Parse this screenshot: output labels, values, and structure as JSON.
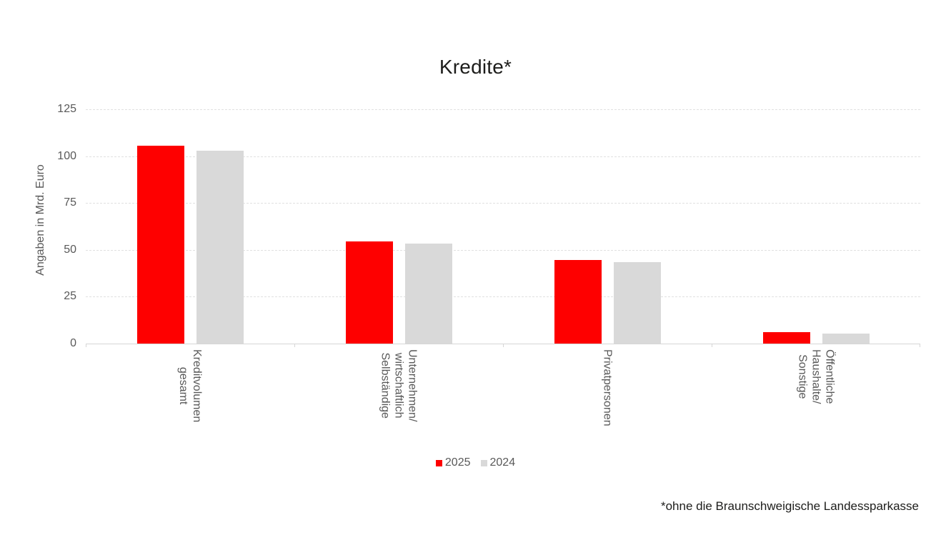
{
  "chart_data": {
    "type": "bar",
    "title": "Kredite*",
    "ylabel": "Angaben in Mrd. Euro",
    "ylim": [
      0,
      125
    ],
    "ytick_step": 25,
    "grid": "horizontal-dashed",
    "legend_position": "bottom-center",
    "categories": [
      [
        "Kreditvolumen",
        "gesamt"
      ],
      [
        "Unternehmen/",
        "wirtschaftlich",
        "Selbständige"
      ],
      [
        "Privatpersonen"
      ],
      [
        "Öffentliche",
        "Haushalte/",
        "Sonstige"
      ]
    ],
    "series": [
      {
        "name": "2025",
        "color": "#fe0000",
        "values": [
          105.5,
          54.5,
          44.5,
          6
        ]
      },
      {
        "name": "2024",
        "color": "#d9d9d9",
        "values": [
          103,
          53.5,
          43.5,
          5.5
        ]
      }
    ]
  },
  "footnote": "*ohne die Braunschweigische Landessparkasse",
  "colors": {
    "series_2025": "#fe0000",
    "series_2024": "#d9d9d9",
    "gridline": "#e0e0e0",
    "axis_line": "#d6d6d6",
    "axis_text": "#595959",
    "title_text": "#1d1d1b",
    "background": "#ffffff"
  }
}
